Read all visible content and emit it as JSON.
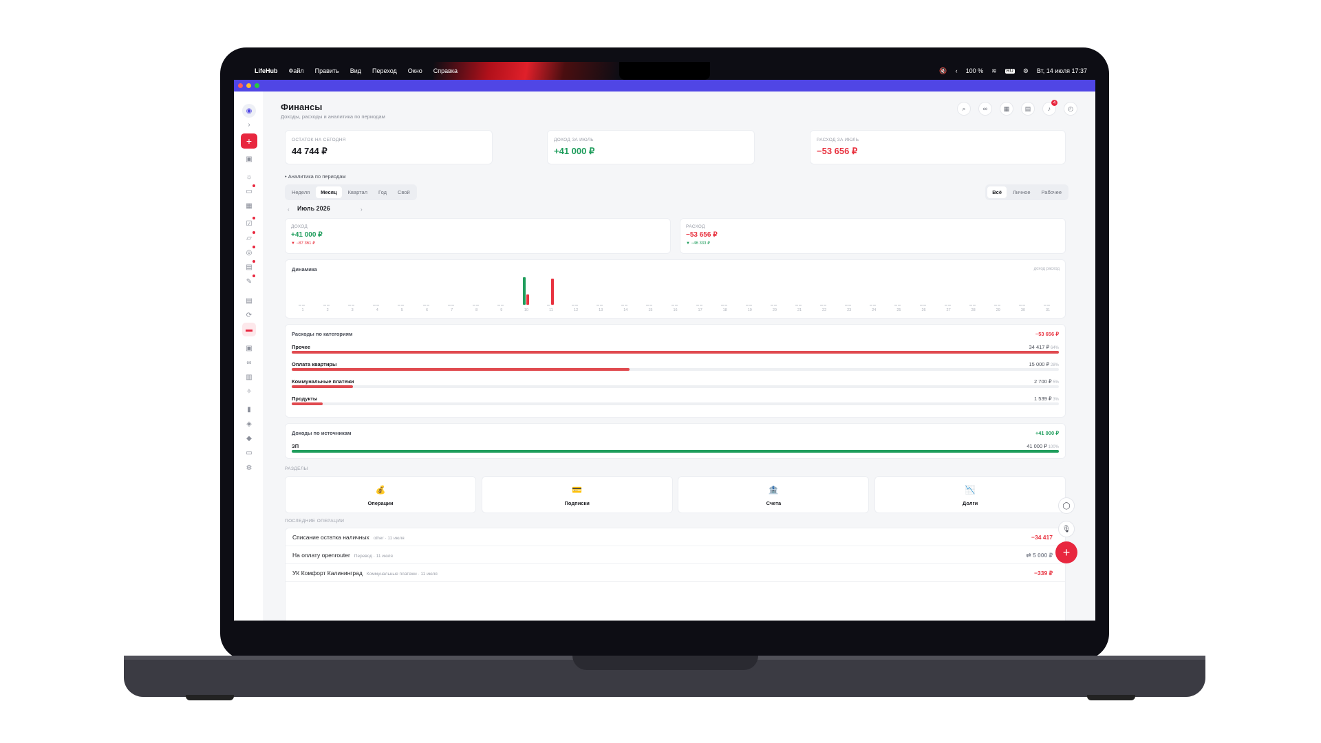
{
  "menubar": {
    "apple": "",
    "app_name": "LifeHub",
    "items": [
      "Файл",
      "Править",
      "Вид",
      "Переход",
      "Окно",
      "Справка"
    ],
    "status": {
      "battery": "100 %",
      "lang": "RU",
      "datetime": "Вт, 14 июля 17:37"
    }
  },
  "page": {
    "title": "Финансы",
    "subtitle": "Доходы, расходы и аналитика по периодам"
  },
  "header_icons": [
    "search-icon",
    "link-icon",
    "calendar-icon",
    "clipboard-icon",
    "bell-icon",
    "timer-icon"
  ],
  "notifications_count": "4",
  "kpis": [
    {
      "label": "ОСТАТОК НА СЕГОДНЯ",
      "value": "44 744 ₽",
      "color": "#1c1d22"
    },
    {
      "label": "ДОХОД ЗА ИЮЛЬ",
      "value": "+41 000 ₽",
      "color": "#1f9d5c"
    },
    {
      "label": "РАСХОД ЗА ИЮЛЬ",
      "value": "−53 656 ₽",
      "color": "#e8323f"
    }
  ],
  "analytics": {
    "title": "Аналитика по периодам",
    "periods": [
      "Неделя",
      "Месяц",
      "Квартал",
      "Год",
      "Свой"
    ],
    "active_period": 1,
    "scopes": [
      "Всё",
      "Личное",
      "Рабочее"
    ],
    "active_scope": 0,
    "month": "Июль 2026",
    "prev": "‹",
    "next": "›",
    "income": {
      "label": "ДОХОД",
      "value": "+41 000 ₽",
      "delta": "▼ −87 361 ₽"
    },
    "expense": {
      "label": "РАСХОД",
      "value": "−53 656 ₽",
      "delta": "▼ −46 333 ₽"
    }
  },
  "dynamics": {
    "title": "Динамика",
    "legend": "доход расход"
  },
  "chart_data": {
    "type": "bar",
    "categories": [
      "1",
      "2",
      "3",
      "4",
      "5",
      "6",
      "7",
      "8",
      "9",
      "10",
      "11",
      "12",
      "13",
      "14",
      "15",
      "16",
      "17",
      "18",
      "19",
      "20",
      "21",
      "22",
      "23",
      "24",
      "25",
      "26",
      "27",
      "28",
      "29",
      "30",
      "31"
    ],
    "series": [
      {
        "name": "доход",
        "color": "#1f9d5c",
        "values": [
          0,
          0,
          0,
          0,
          0,
          0,
          0,
          0,
          0,
          41000,
          0,
          0,
          0,
          0,
          0,
          0,
          0,
          0,
          0,
          0,
          0,
          0,
          0,
          0,
          0,
          0,
          0,
          0,
          0,
          0,
          0
        ]
      },
      {
        "name": "расход",
        "color": "#e8323f",
        "values": [
          0,
          0,
          0,
          0,
          0,
          0,
          0,
          0,
          0,
          15000,
          38656,
          0,
          0,
          0,
          0,
          0,
          0,
          0,
          0,
          0,
          0,
          0,
          0,
          0,
          0,
          0,
          0,
          0,
          0,
          0,
          0
        ]
      }
    ],
    "ylim": [
      0,
      41000
    ]
  },
  "expenses_by_category": {
    "title": "Расходы по категориям",
    "total": "−53 656 ₽",
    "items": [
      {
        "name": "Прочее",
        "amount": "34 417 ₽",
        "pct": "64%",
        "share": 1.0
      },
      {
        "name": "Оплата квартиры",
        "amount": "15 000 ₽",
        "pct": "28%",
        "share": 0.44
      },
      {
        "name": "Коммунальные платежи",
        "amount": "2 700 ₽",
        "pct": "5%",
        "share": 0.08
      },
      {
        "name": "Продукты",
        "amount": "1 539 ₽",
        "pct": "3%",
        "share": 0.04
      }
    ]
  },
  "income_by_source": {
    "title": "Доходы по источникам",
    "total": "+41 000 ₽",
    "items": [
      {
        "name": "ЗП",
        "amount": "41 000 ₽",
        "pct": "100%",
        "share": 1.0
      }
    ]
  },
  "sections": {
    "title": "РАЗДЕЛЫ",
    "items": [
      {
        "label": "Операции",
        "icon": "💰",
        "name": "money-bag-icon"
      },
      {
        "label": "Подписки",
        "icon": "💳",
        "name": "card-icon"
      },
      {
        "label": "Счета",
        "icon": "🏦",
        "name": "bank-icon"
      },
      {
        "label": "Долги",
        "icon": "📉",
        "name": "chart-down-icon"
      }
    ]
  },
  "recent": {
    "title": "ПОСЛЕДНИЕ ОПЕРАЦИИ",
    "items": [
      {
        "name": "Списание остатка наличных",
        "meta": "other · 11 июля",
        "amount": "−34 417",
        "color": "#e8323f"
      },
      {
        "name": "На оплату openrouter",
        "meta": "Перевод · 11 июля",
        "amount": "⇄ 5 000 ₽",
        "color": "#8a8e99"
      },
      {
        "name": "УК Комфорт Калининград",
        "meta": "Коммунальные платежи · 11 июля",
        "amount": "−339 ₽",
        "color": "#e8323f"
      }
    ]
  },
  "sidebar_icons": [
    "avatar",
    "expand-icon",
    "add-icon",
    "home-icon",
    "sun-icon",
    "inbox-icon",
    "calendar-icon",
    "checklist-icon",
    "folder-icon",
    "target-icon",
    "planner-icon",
    "pen-icon",
    "notes-icon",
    "repeat-icon",
    "wallet-icon",
    "journal-icon",
    "link-icon",
    "books-icon",
    "handshake-icon",
    "stats-icon",
    "layers-icon",
    "tag-icon",
    "archive-icon",
    "settings-icon"
  ]
}
